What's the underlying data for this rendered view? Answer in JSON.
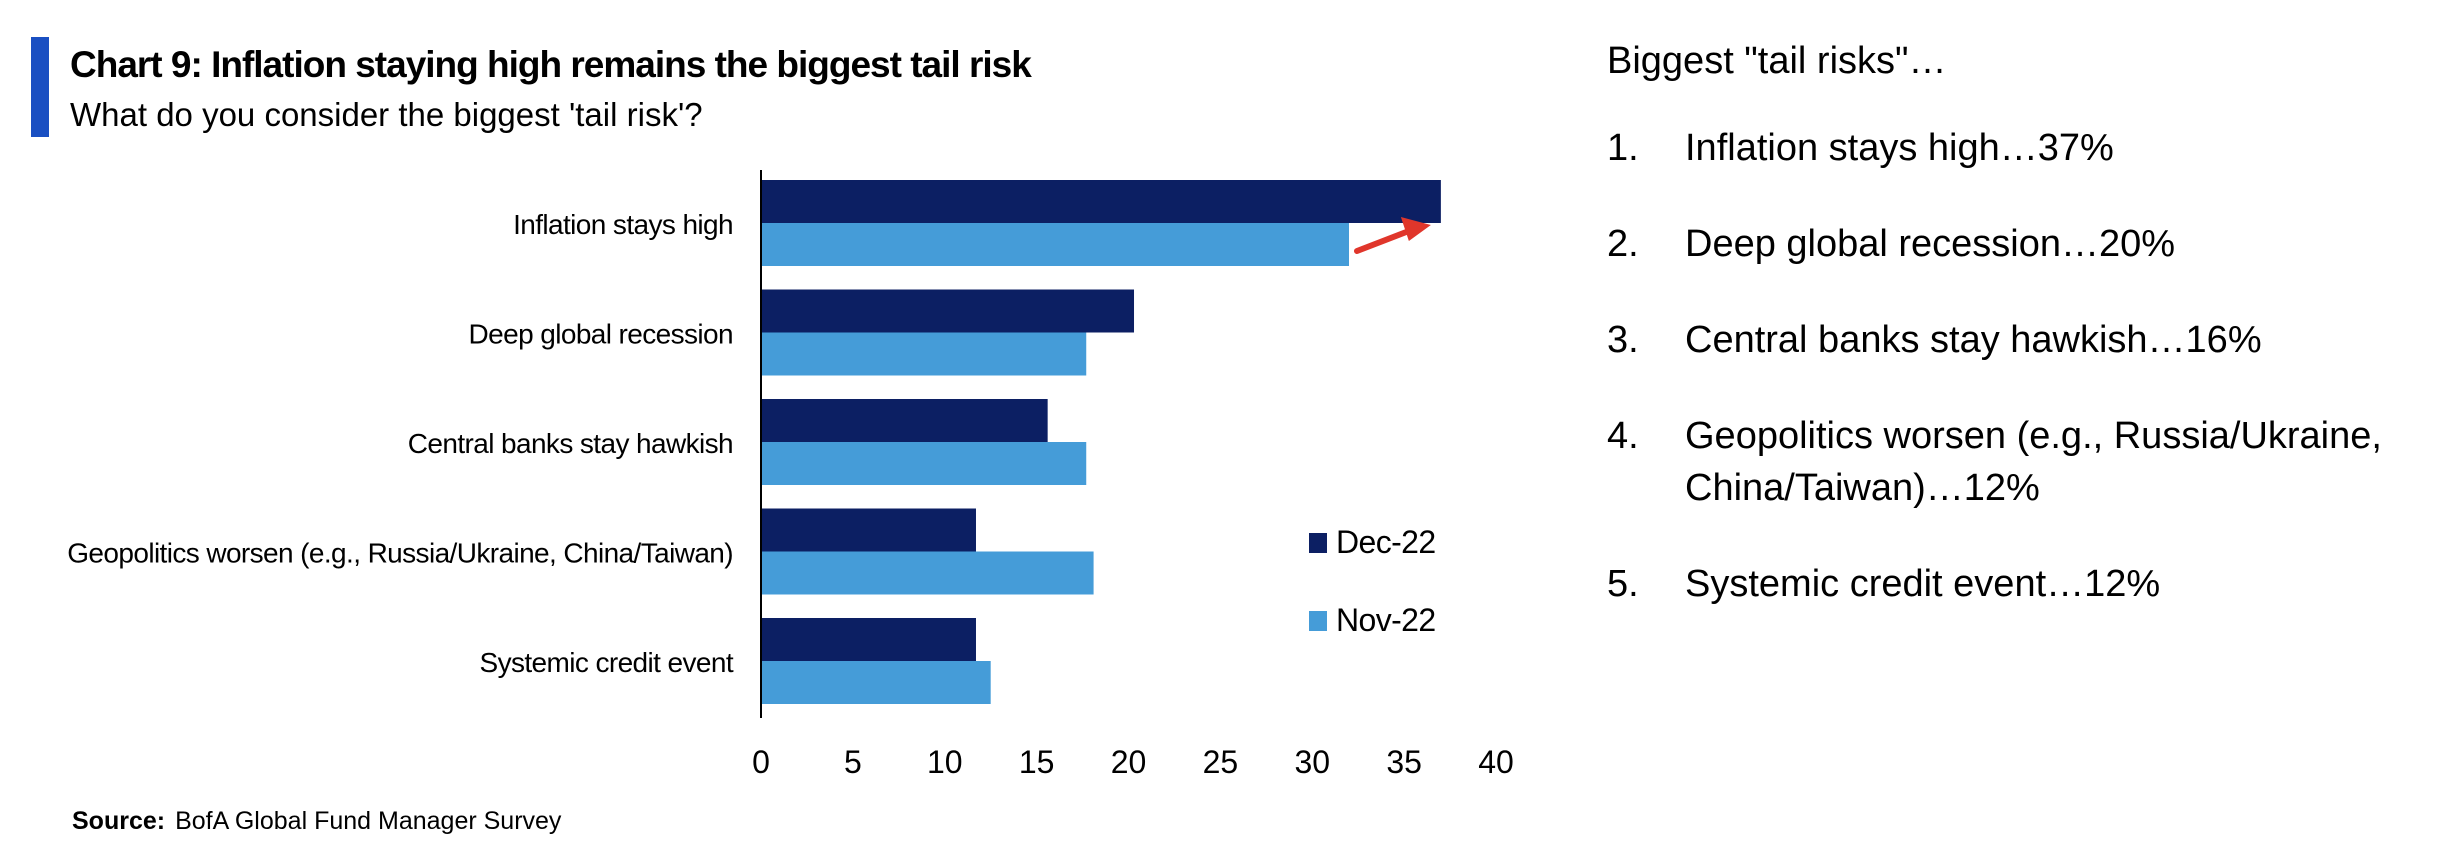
{
  "title": "Chart 9: Inflation staying high remains the biggest tail risk",
  "subtitle": "What do you consider the biggest 'tail risk'?",
  "source": {
    "label": "Source:",
    "text": "BofA Global Fund Manager Survey"
  },
  "colors": {
    "accent": "#1a4fc2",
    "dec22": "#0c1f63",
    "nov22": "#459cd8",
    "arrow": "#e0362b"
  },
  "chart_data": {
    "type": "bar",
    "orientation": "horizontal",
    "categories": [
      "Inflation stays high",
      "Deep global recession",
      "Central banks stay hawkish",
      "Geopolitics worsen (e.g., Russia/Ukraine, China/Taiwan)",
      "Systemic credit event"
    ],
    "series": [
      {
        "name": "Dec-22",
        "values": [
          37,
          20.3,
          15.6,
          11.7,
          11.7
        ]
      },
      {
        "name": "Nov-22",
        "values": [
          32,
          17.7,
          17.7,
          18.1,
          12.5
        ]
      }
    ],
    "xlim": [
      0,
      40
    ],
    "xticks": [
      0,
      5,
      10,
      15,
      20,
      25,
      30,
      35,
      40
    ],
    "grid": false,
    "legend": "bottom-right",
    "annotation": "arrow"
  },
  "right_panel": {
    "heading": "Biggest \"tail risks\"…",
    "items": [
      {
        "num": "1.",
        "text": "Inflation stays high…37%"
      },
      {
        "num": "2.",
        "text": "Deep global recession…20%"
      },
      {
        "num": "3.",
        "text": "Central banks stay hawkish…16%"
      },
      {
        "num": "4.",
        "text": "Geopolitics worsen (e.g., Russia/Ukraine, China/Taiwan)…12%"
      },
      {
        "num": "5.",
        "text": "Systemic credit event…12%"
      }
    ]
  }
}
